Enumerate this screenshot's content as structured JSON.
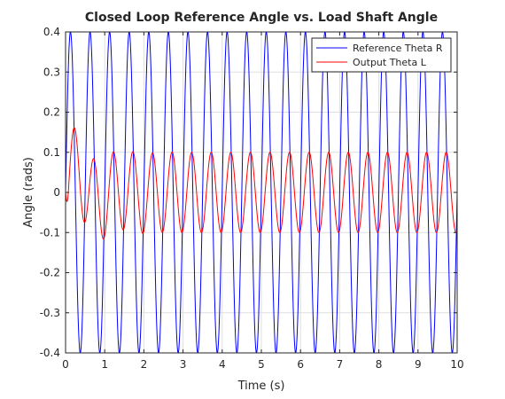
{
  "chart_data": {
    "type": "line",
    "title": "Closed Loop Reference Angle vs. Load Shaft Angle",
    "xlabel": "Time (s)",
    "ylabel": "Angle (rads)",
    "xlim": [
      0,
      10
    ],
    "ylim": [
      -0.4,
      0.4
    ],
    "x_ticks": [
      0,
      1,
      2,
      3,
      4,
      5,
      6,
      7,
      8,
      9,
      10
    ],
    "x_tick_labels": [
      "0",
      "1",
      "2",
      "3",
      "4",
      "5",
      "6",
      "7",
      "8",
      "9",
      "10"
    ],
    "y_ticks": [
      -0.4,
      -0.3,
      -0.2,
      -0.1,
      0,
      0.1,
      0.2,
      0.3,
      0.4
    ],
    "y_tick_labels": [
      "-0.4",
      "-0.3",
      "-0.2",
      "-0.1",
      "0",
      "0.1",
      "0.2",
      "0.3",
      "0.4"
    ],
    "grid": true,
    "legend_position": "top-right",
    "series": [
      {
        "name": "Reference Theta R",
        "color": "#0000ff",
        "form": "sine",
        "amplitude": 0.4,
        "frequency_hz": 2,
        "phase": 0
      },
      {
        "name": "Output Theta L",
        "color": "#ff0000",
        "form": "damped_sine",
        "steady_amplitude": 0.1,
        "frequency_hz": 2,
        "phase_lag_rad": 1.2,
        "initial_peak": 0.2,
        "initial_peak_time": 0.3,
        "decay_time_constant": 0.55
      }
    ]
  }
}
